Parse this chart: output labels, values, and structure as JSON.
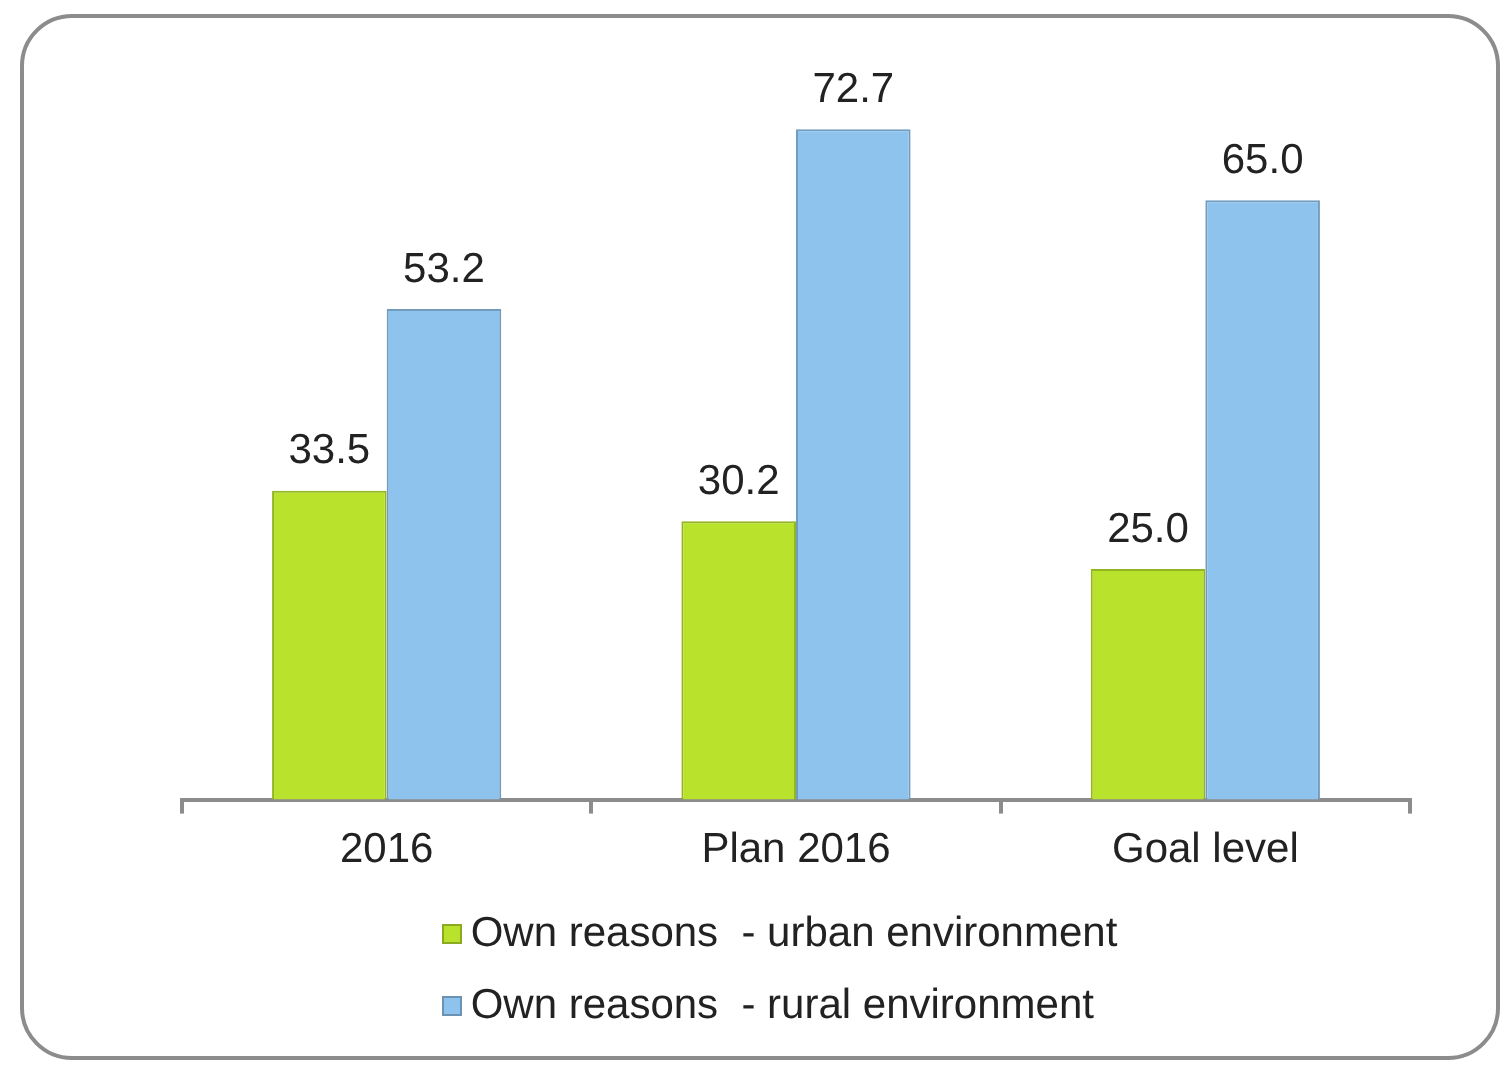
{
  "chart_data": {
    "type": "bar",
    "categories": [
      "2016",
      "Plan 2016",
      "Goal level"
    ],
    "series": [
      {
        "name": "Own reasons  - urban environment",
        "color": "#b9e22c",
        "values": [
          33.5,
          30.2,
          25.0
        ],
        "value_labels": [
          "33.5",
          "30.2",
          "25.0"
        ]
      },
      {
        "name": "Own reasons  - rural environment",
        "color": "#8ec3ee",
        "values": [
          53.2,
          72.7,
          65.0
        ],
        "value_labels": [
          "53.2",
          "72.7",
          "65.0"
        ]
      }
    ],
    "legend": "bottom"
  }
}
